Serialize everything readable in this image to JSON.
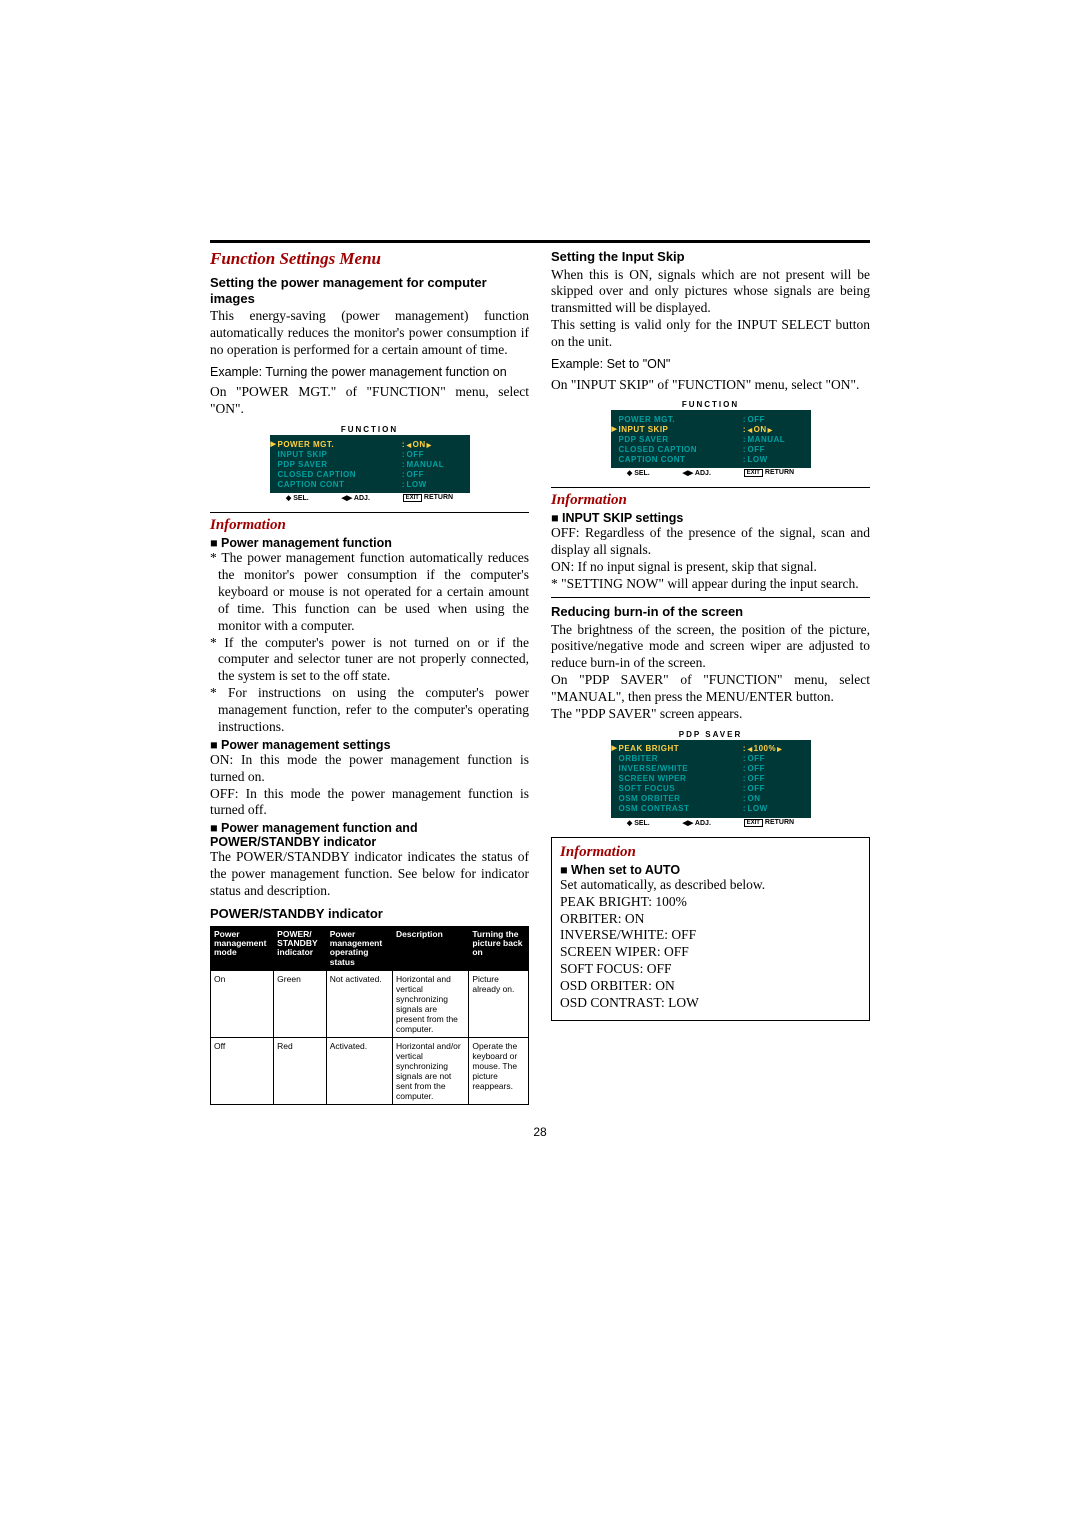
{
  "page_number": "28",
  "left": {
    "main_heading": "Function Settings Menu",
    "h_power_mgmt": "Setting the power management for computer images",
    "p_power_mgmt": "This energy-saving (power management) function automatically reduces the monitor's power consumption if no operation is performed for a certain amount of time.",
    "example1": "Example: Turning the power management function on",
    "p_on_menu": "On \"POWER MGT.\" of \"FUNCTION\" menu, select \"ON\".",
    "osd1": {
      "title": "FUNCTION",
      "rows": [
        {
          "l": "POWER MGT.",
          "v": "ON",
          "sel": true
        },
        {
          "l": "INPUT SKIP",
          "v": "OFF"
        },
        {
          "l": "PDP SAVER",
          "v": "MANUAL"
        },
        {
          "l": "CLOSED CAPTION",
          "v": "OFF"
        },
        {
          "l": "CAPTION CONT",
          "v": "LOW"
        }
      ],
      "foot": [
        "◆ SEL.",
        "◀▶ ADJ.",
        "EXIT",
        "RETURN"
      ]
    },
    "info_title": "Information",
    "h_pmf": "Power management function",
    "bul1": "* The power management function automatically reduces the monitor's power consumption if the computer's keyboard or mouse is not operated for a certain amount of time. This function can be used when using the monitor with a computer.",
    "bul2": "* If the computer's power is not turned on or if the computer and selector tuner are not properly connected, the system is set to the off state.",
    "bul3": "* For instructions on using the computer's power management function, refer to the computer's operating instructions.",
    "h_pms": "Power management settings",
    "pms_on": "ON: In this mode the power management function is turned on.",
    "pms_off": "OFF: In this mode the power management function is turned off.",
    "h_pmfpsi": "Power management function and POWER/STANDBY indicator",
    "p_pmfpsi": "The POWER/STANDBY indicator indicates the status of the power management function. See below for indicator status and description.",
    "h_table": "POWER/STANDBY indicator",
    "table": {
      "headers": [
        "Power management mode",
        "POWER/ STANDBY indicator",
        "Power management operating status",
        "Description",
        "Turning the picture back on"
      ],
      "rows": [
        [
          "On",
          "Green",
          "Not activated.",
          "Horizontal and vertical synchronizing signals are present from the computer.",
          "Picture already on."
        ],
        [
          "Off",
          "Red",
          "Activated.",
          "Horizontal and/or vertical synchronizing signals are not sent from the computer.",
          "Operate the keyboard or mouse. The picture reappears."
        ]
      ]
    }
  },
  "right": {
    "h_input_skip": "Setting the Input Skip",
    "p_input_skip1": "When this is ON, signals which are not present will be skipped over and only pictures whose signals are being transmitted will be displayed.",
    "p_input_skip2": "This setting is valid only for the INPUT SELECT button on the unit.",
    "example2": "Example: Set to \"ON\"",
    "p_on_menu2": "On \"INPUT SKIP\" of \"FUNCTION\" menu, select \"ON\".",
    "osd2": {
      "title": "FUNCTION",
      "rows": [
        {
          "l": "POWER MGT.",
          "v": "OFF"
        },
        {
          "l": "INPUT SKIP",
          "v": "ON",
          "sel": true
        },
        {
          "l": "PDP SAVER",
          "v": "MANUAL"
        },
        {
          "l": "CLOSED CAPTION",
          "v": "OFF"
        },
        {
          "l": "CAPTION CONT",
          "v": "LOW"
        }
      ]
    },
    "info_title2": "Information",
    "h_iss": "INPUT SKIP settings",
    "iss_off": "OFF: Regardless of the presence of the signal, scan and display all signals.",
    "iss_on": "ON: If no input signal is present, skip that signal.",
    "iss_note": "* \"SETTING NOW\" will appear during the input search.",
    "h_burnin": "Reducing burn-in of the screen",
    "p_burnin1": "The brightness of the screen, the position of the picture, positive/negative mode and screen wiper are adjusted to reduce burn-in of the screen.",
    "p_burnin2": "On \"PDP SAVER\" of \"FUNCTION\" menu, select \"MANUAL\", then press the MENU/ENTER button.",
    "p_burnin3": "The \"PDP SAVER\" screen appears.",
    "osd3": {
      "title": "PDP SAVER",
      "rows": [
        {
          "l": "PEAK BRIGHT",
          "v": "100%",
          "sel": true
        },
        {
          "l": "ORBITER",
          "v": "OFF"
        },
        {
          "l": "INVERSE/WHITE",
          "v": "OFF"
        },
        {
          "l": "SCREEN WIPER",
          "v": "OFF"
        },
        {
          "l": "SOFT FOCUS",
          "v": "OFF"
        },
        {
          "l": "OSM ORBITER",
          "v": "ON"
        },
        {
          "l": "OSM CONTRAST",
          "v": "LOW"
        }
      ]
    },
    "info_title3": "Information",
    "h_auto": "When set to AUTO",
    "p_auto_intro": "Set automatically, as described below.",
    "auto_lines": [
      "PEAK BRIGHT: 100%",
      "ORBITER: ON",
      "INVERSE/WHITE: OFF",
      "SCREEN WIPER: OFF",
      "SOFT FOCUS: OFF",
      "OSD ORBITER: ON",
      "OSD CONTRAST: LOW"
    ]
  }
}
